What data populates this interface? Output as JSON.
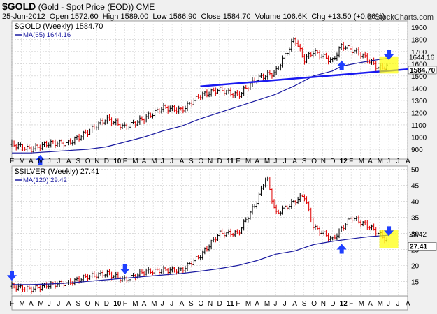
{
  "header": {
    "symbol": "$GOLD",
    "description": "(Gold - Spot Price (EOD)) CME",
    "date": "25-Jun-2012",
    "open_label": "Open",
    "open": "1572.60",
    "high_label": "High",
    "high": "1589.00",
    "low_label": "Low",
    "low": "1566.90",
    "close_label": "Close",
    "close": "1584.70",
    "volume_label": "Volume",
    "volume": "106.6K",
    "chg_label": "Chg",
    "chg": "+13.50 (+0.86%)",
    "credit": "© StockCharts.com"
  },
  "colors": {
    "up": "#000000",
    "down": "#e00000",
    "ma": "#1a1aa0",
    "trend": "#1a1af0",
    "arrow": "#1f3fff",
    "highlight": "#ffff00",
    "grid": "#c8c8c8",
    "panel": "#ffffff"
  },
  "x_axis": {
    "labels": [
      "F",
      "M",
      "A",
      "M",
      "J",
      "J",
      "A",
      "S",
      "O",
      "N",
      "D",
      "10",
      "F",
      "M",
      "A",
      "M",
      "J",
      "J",
      "A",
      "S",
      "O",
      "N",
      "D",
      "11",
      "F",
      "M",
      "A",
      "M",
      "J",
      "J",
      "A",
      "S",
      "O",
      "N",
      "D",
      "12",
      "F",
      "M",
      "A",
      "M",
      "J",
      "J",
      "A"
    ],
    "bold_labels": [
      "10",
      "11",
      "12"
    ]
  },
  "chart_data": [
    {
      "type": "line",
      "title": "$GOLD (Weekly) 1584.70",
      "ma_label": "MA(65) 1644.16",
      "period": "weekly",
      "x_range": [
        "2009-02",
        "2012-08"
      ],
      "x": [
        "2009-02",
        "2009-04",
        "2009-06",
        "2009-08",
        "2009-10",
        "2009-12",
        "2010-02",
        "2010-04",
        "2010-06",
        "2010-08",
        "2010-10",
        "2010-12",
        "2011-02",
        "2011-04",
        "2011-06",
        "2011-08",
        "2011-09",
        "2011-10",
        "2011-12",
        "2012-01",
        "2012-03",
        "2012-05",
        "2012-06"
      ],
      "series": [
        {
          "name": "$GOLD",
          "values": [
            940,
            900,
            950,
            950,
            1040,
            1150,
            1080,
            1150,
            1240,
            1220,
            1340,
            1390,
            1340,
            1480,
            1530,
            1810,
            1630,
            1700,
            1620,
            1750,
            1680,
            1560,
            1585
          ]
        },
        {
          "name": "MA(65)",
          "values": [
            870,
            870,
            880,
            890,
            900,
            920,
            960,
            1000,
            1050,
            1090,
            1150,
            1200,
            1250,
            1300,
            1350,
            1420,
            1460,
            1500,
            1540,
            1580,
            1610,
            1635,
            1644
          ]
        }
      ],
      "trendline": {
        "x": [
          "2010-10",
          "2012-08"
        ],
        "y": [
          1415,
          1555
        ]
      },
      "arrows": [
        {
          "x": "2009-05",
          "direction": "up"
        },
        {
          "x": "2012-01",
          "direction": "up"
        },
        {
          "x": "2012-06",
          "direction": "down"
        }
      ],
      "highlight_box": {
        "x": [
          "2012-05",
          "2012-07"
        ],
        "y": [
          1520,
          1660
        ]
      },
      "last_price_label": "1584.70",
      "last_ma_label": "1644.16",
      "yticks": [
        900,
        1000,
        1100,
        1200,
        1300,
        1400,
        1500,
        1600,
        1700,
        1800,
        1900
      ],
      "ylim": [
        820,
        1950
      ]
    },
    {
      "type": "line",
      "title": "$SILVER (Weekly) 27.41",
      "ma_label": "MA(120) 29.42",
      "period": "weekly",
      "x_range": [
        "2009-02",
        "2012-08"
      ],
      "x": [
        "2009-02",
        "2009-04",
        "2009-06",
        "2009-08",
        "2009-10",
        "2009-12",
        "2010-02",
        "2010-04",
        "2010-06",
        "2010-08",
        "2010-10",
        "2010-12",
        "2011-02",
        "2011-04",
        "2011-05",
        "2011-06",
        "2011-08",
        "2011-09",
        "2011-10",
        "2011-12",
        "2012-02",
        "2012-04",
        "2012-06"
      ],
      "series": [
        {
          "name": "$SILVER",
          "values": [
            13.5,
            12.5,
            14,
            14.5,
            16.5,
            17.5,
            15.5,
            18,
            18.5,
            18.5,
            23,
            30,
            30,
            40,
            48,
            36,
            40,
            42,
            32,
            28,
            35,
            32,
            27.4
          ]
        },
        {
          "name": "MA(120)",
          "values": [
            14,
            14,
            14.2,
            14.5,
            15,
            15.5,
            16,
            16.5,
            17,
            17.5,
            18.2,
            19,
            20,
            21.5,
            22.5,
            23.5,
            24.5,
            25.5,
            26.5,
            27.5,
            28.3,
            29,
            29.4
          ]
        }
      ],
      "arrows": [
        {
          "x": "2009-02",
          "direction": "down"
        },
        {
          "x": "2010-02",
          "direction": "down"
        },
        {
          "x": "2012-01",
          "direction": "up"
        },
        {
          "x": "2012-06",
          "direction": "down"
        }
      ],
      "highlight_box": {
        "x": [
          "2012-05",
          "2012-07"
        ],
        "y": [
          25.5,
          31
        ]
      },
      "last_price_label": "27.41",
      "last_ma_label": "29.42",
      "yticks": [
        15,
        20,
        25,
        30,
        35,
        40,
        45,
        50
      ],
      "ylim": [
        10.5,
        51
      ]
    }
  ]
}
